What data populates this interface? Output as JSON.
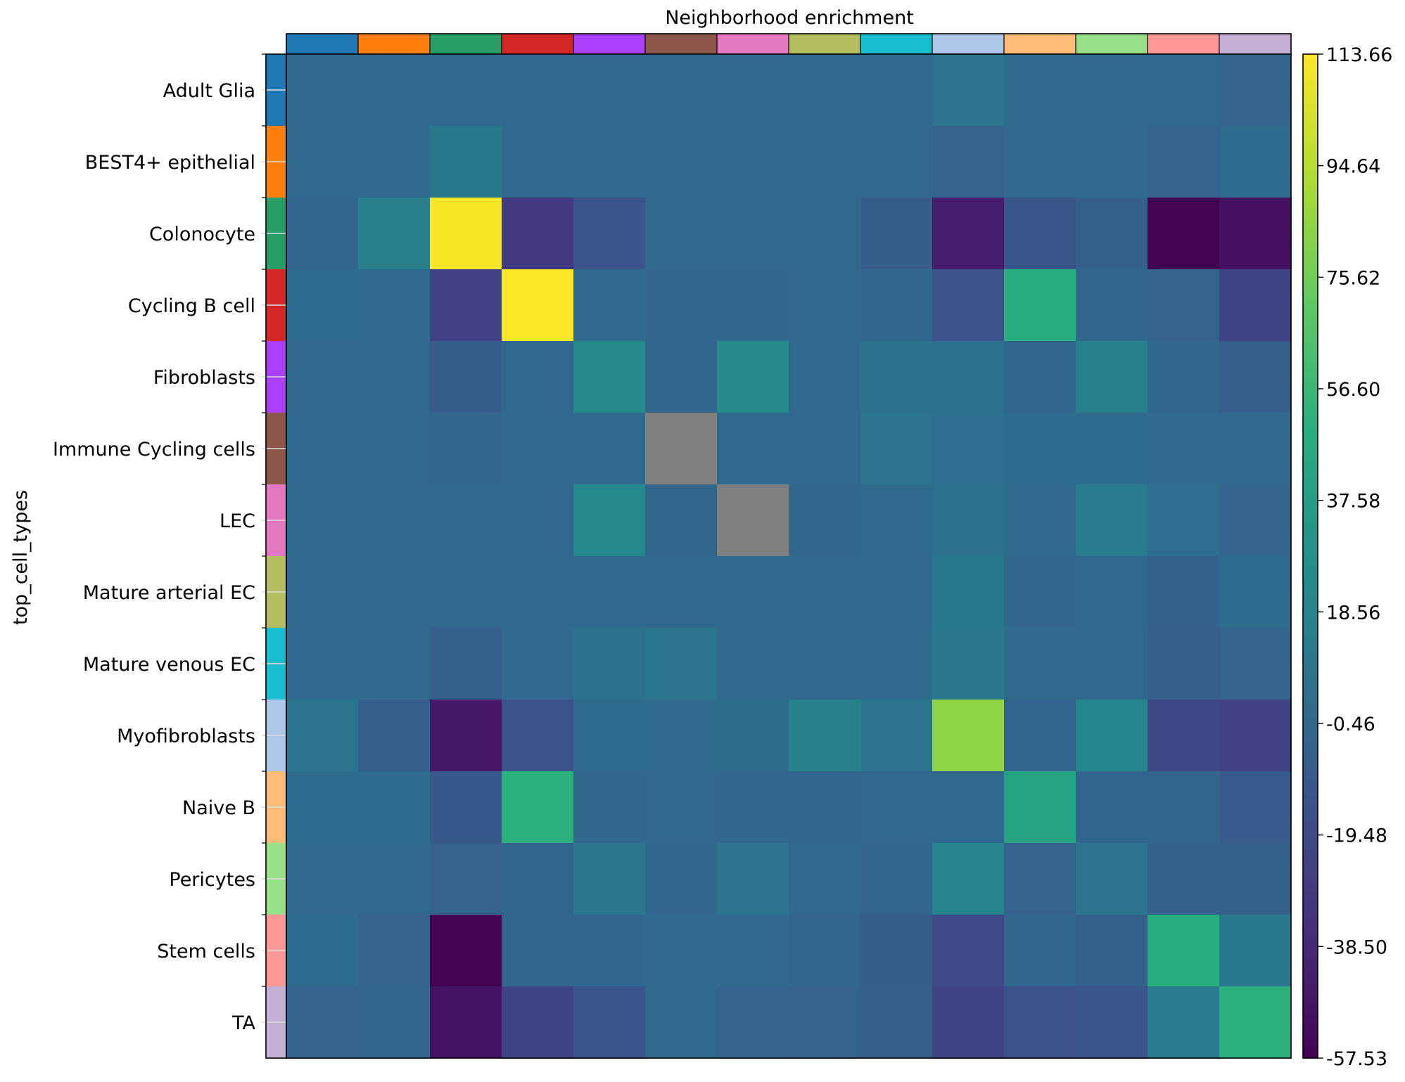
{
  "chart_data": {
    "type": "heatmap",
    "title": "Neighborhood enrichment",
    "ylabel": "top_cell_types",
    "xlabel": "",
    "categories": [
      "Adult Glia",
      "BEST4+ epithelial",
      "Colonocyte",
      "Cycling B cell",
      "Fibroblasts",
      "Immune Cycling cells",
      "LEC",
      "Mature arterial EC",
      "Mature venous EC",
      "Myofibroblasts",
      "Naive B",
      "Pericytes",
      "Stem cells",
      "TA"
    ],
    "category_colors": [
      "#1f77b4",
      "#ff7f0e",
      "#279e68",
      "#d62728",
      "#aa40fc",
      "#8c564b",
      "#e377c2",
      "#b5bd61",
      "#17becf",
      "#aec7e8",
      "#ffbb78",
      "#98df8a",
      "#ff9896",
      "#c5b0d5"
    ],
    "values": [
      [
        0,
        0,
        0,
        0,
        0,
        0,
        0,
        0,
        0,
        9,
        1,
        0,
        0,
        -3
      ],
      [
        1,
        1,
        11,
        1,
        1,
        0,
        0,
        0,
        0,
        -4,
        1,
        1,
        -3,
        2
      ],
      [
        -2,
        15,
        112,
        -28,
        -13,
        0,
        0,
        0,
        -8,
        -44,
        -12,
        -6,
        -57,
        -50
      ],
      [
        2,
        1,
        -26,
        113,
        1,
        -1,
        -1,
        0,
        -1,
        -14,
        50,
        -1,
        -4,
        -23
      ],
      [
        0,
        0,
        -8,
        0,
        23,
        -2,
        23,
        0,
        7,
        5,
        -1,
        15,
        -1,
        -7
      ],
      [
        0,
        0,
        -1,
        0,
        1,
        null,
        0,
        0,
        9,
        4,
        2,
        2,
        1,
        0
      ],
      [
        1,
        1,
        1,
        0,
        22,
        -2,
        null,
        -1,
        1,
        5,
        1,
        13,
        4,
        -3
      ],
      [
        0,
        0,
        0,
        0,
        0,
        0,
        0,
        0,
        0,
        11,
        -1,
        0,
        -5,
        2
      ],
      [
        1,
        1,
        -6,
        1,
        7,
        9,
        1,
        0,
        1,
        10,
        1,
        0,
        -7,
        -3
      ],
      [
        9,
        -7,
        -47,
        -14,
        2,
        1,
        3,
        17,
        9,
        84,
        -2,
        20,
        -21,
        -24
      ],
      [
        2,
        2,
        -11,
        51,
        -1,
        0,
        -1,
        -1,
        0,
        0,
        41,
        -2,
        -2,
        -9
      ],
      [
        0,
        0,
        -4,
        -2,
        10,
        -1,
        9,
        0,
        -2,
        18,
        -4,
        9,
        -6,
        -5
      ],
      [
        2,
        -3,
        -57,
        -1,
        -1,
        1,
        1,
        -2,
        -8,
        -20,
        -1,
        -5,
        50,
        11
      ],
      [
        -3,
        -2,
        -49,
        -23,
        -12,
        1,
        -3,
        -4,
        -7,
        -23,
        -15,
        -12,
        13,
        51
      ]
    ],
    "missing_color": "#808080",
    "colormap": "viridis",
    "vmin": -57.53,
    "vmax": 113.66,
    "colorbar_ticks": [
      "-57.53",
      "-38.50",
      "-19.48",
      "-0.46",
      "18.56",
      "37.58",
      "56.60",
      "75.62",
      "94.64",
      "113.66"
    ],
    "grid": false,
    "legend": "colorbar-right"
  }
}
